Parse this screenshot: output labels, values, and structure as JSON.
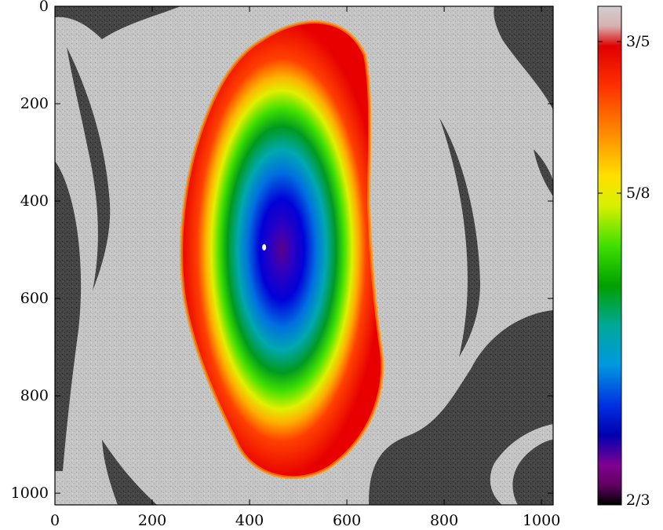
{
  "chart_data": {
    "type": "heatmap",
    "title": "",
    "xlabel": "",
    "ylabel": "",
    "xlim": [
      0,
      1024
    ],
    "ylim": [
      0,
      1024
    ],
    "y_inverted": true,
    "x_ticks": [
      {
        "value": 0,
        "label": "0"
      },
      {
        "value": 200,
        "label": "200"
      },
      {
        "value": 400,
        "label": "400"
      },
      {
        "value": 600,
        "label": "600"
      },
      {
        "value": 800,
        "label": "800"
      },
      {
        "value": 1000,
        "label": "1000"
      }
    ],
    "y_ticks": [
      {
        "value": 0,
        "label": "0"
      },
      {
        "value": 200,
        "label": "200"
      },
      {
        "value": 400,
        "label": "400"
      },
      {
        "value": 600,
        "label": "600"
      },
      {
        "value": 800,
        "label": "800"
      },
      {
        "value": 1000,
        "label": "1000"
      }
    ],
    "colorbar": {
      "range": [
        0.6,
        0.6667
      ],
      "ticks": [
        {
          "value": 0.6,
          "label": "3/5"
        },
        {
          "value": 0.625,
          "label": "5/8"
        },
        {
          "value": 0.6667,
          "label": "2/3"
        }
      ],
      "colors_top_to_bottom": [
        "#c9c9c9",
        "#e00000",
        "#ff8c00",
        "#ffd800",
        "#e8f000",
        "#40e000",
        "#00a000",
        "#00a8a8",
        "#0090e0",
        "#0000d0",
        "#800090",
        "#000000"
      ]
    },
    "regions": {
      "chaotic_sea_color": "#c4c4c4",
      "outside_color": "#000000",
      "island_center": {
        "x": 430,
        "y": 495
      }
    }
  }
}
